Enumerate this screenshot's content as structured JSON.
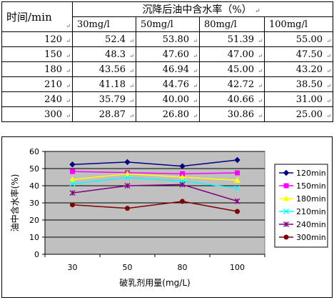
{
  "table": {
    "corner_label": "时间/min",
    "group_header": "沉降后油中含水率（%）",
    "columns": [
      "30mg/l",
      "50mg/l",
      "80mg/l",
      "100mg/l"
    ],
    "rows": [
      {
        "time": "120",
        "values": [
          "52.4",
          "53.80",
          "51.39",
          "55.00"
        ]
      },
      {
        "time": "150",
        "values": [
          "48.3",
          "47.60",
          "47.00",
          "47.50"
        ]
      },
      {
        "time": "180",
        "values": [
          "43.56",
          "46.94",
          "45.00",
          "43.20"
        ]
      },
      {
        "time": "210",
        "values": [
          "41.18",
          "44.76",
          "42.72",
          "38.50"
        ]
      },
      {
        "time": "240",
        "values": [
          "35.79",
          "40.00",
          "40.66",
          "31.00"
        ]
      },
      {
        "time": "300",
        "values": [
          "28.87",
          "26.80",
          "30.86",
          "25.00"
        ]
      }
    ]
  },
  "chart_data": {
    "type": "line",
    "categories": [
      "30",
      "50",
      "80",
      "100"
    ],
    "xlabel": "破乳剂用量(mg/L)",
    "ylabel": "油中含水率(%)",
    "ylim": [
      0,
      60
    ],
    "yticks": [
      "0",
      "10",
      "20",
      "30",
      "40",
      "50",
      "60"
    ],
    "grid": true,
    "legend_position": "right",
    "plot_background": "#c0c0c0",
    "series": [
      {
        "name": "120min",
        "color": "#000080",
        "marker": "diamond",
        "values": [
          52.4,
          53.8,
          51.39,
          55.0
        ]
      },
      {
        "name": "150min",
        "color": "#ff00ff",
        "marker": "square",
        "values": [
          48.3,
          47.6,
          47.0,
          47.5
        ]
      },
      {
        "name": "180min",
        "color": "#ffff00",
        "marker": "triangle",
        "values": [
          43.56,
          46.94,
          45.0,
          43.2
        ]
      },
      {
        "name": "210min",
        "color": "#00ffff",
        "marker": "x",
        "values": [
          41.18,
          44.76,
          42.72,
          38.5
        ]
      },
      {
        "name": "240min",
        "color": "#800080",
        "marker": "star",
        "values": [
          35.79,
          40.0,
          40.66,
          31.0
        ]
      },
      {
        "name": "300min",
        "color": "#800000",
        "marker": "circle",
        "values": [
          28.87,
          26.8,
          30.86,
          25.0
        ]
      }
    ]
  }
}
